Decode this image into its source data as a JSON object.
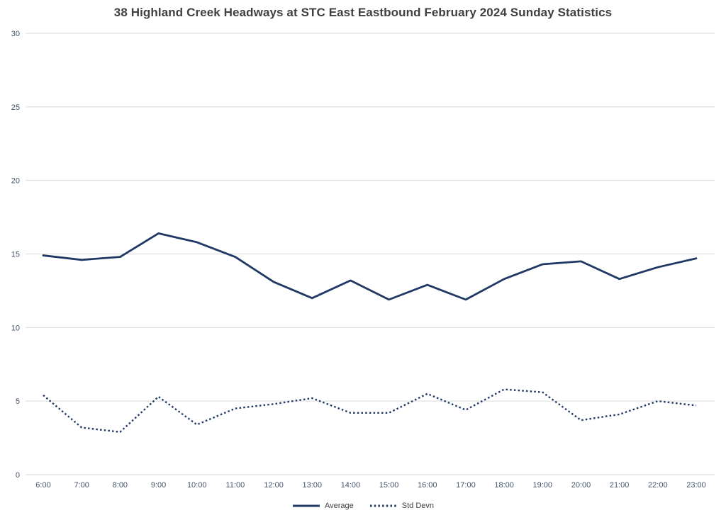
{
  "title": "38 Highland Creek Headways at STC East Eastbound February 2024 Sunday Statistics",
  "colors": {
    "line": "#1F3864",
    "grid": "#D9D9D9",
    "title_text": "#404040",
    "axis_text": "#44546A"
  },
  "legend": [
    {
      "label": "Average",
      "style": "solid"
    },
    {
      "label": "Std Devn",
      "style": "dotted"
    }
  ],
  "chart_data": {
    "type": "line",
    "title": "38 Highland Creek Headways at STC East Eastbound February 2024 Sunday Statistics",
    "categories": [
      "6:00",
      "7:00",
      "8:00",
      "9:00",
      "10:00",
      "11:00",
      "12:00",
      "13:00",
      "14:00",
      "15:00",
      "16:00",
      "17:00",
      "18:00",
      "19:00",
      "20:00",
      "21:00",
      "22:00",
      "23:00"
    ],
    "series": [
      {
        "name": "Average",
        "style": "solid",
        "values": [
          14.9,
          14.6,
          14.8,
          16.4,
          15.8,
          14.8,
          13.1,
          12.0,
          13.2,
          11.9,
          12.9,
          11.9,
          13.3,
          14.3,
          14.5,
          13.3,
          14.1,
          14.7
        ]
      },
      {
        "name": "Std Devn",
        "style": "dotted",
        "values": [
          5.4,
          3.2,
          2.9,
          5.3,
          3.4,
          4.5,
          4.8,
          5.2,
          4.2,
          4.2,
          5.5,
          4.4,
          5.8,
          5.6,
          3.7,
          4.1,
          5.0,
          4.7
        ]
      }
    ],
    "xlabel": "",
    "ylabel": "",
    "ylim": [
      0,
      30
    ],
    "ytick_interval": 5,
    "grid": true,
    "legend_position": "bottom"
  }
}
